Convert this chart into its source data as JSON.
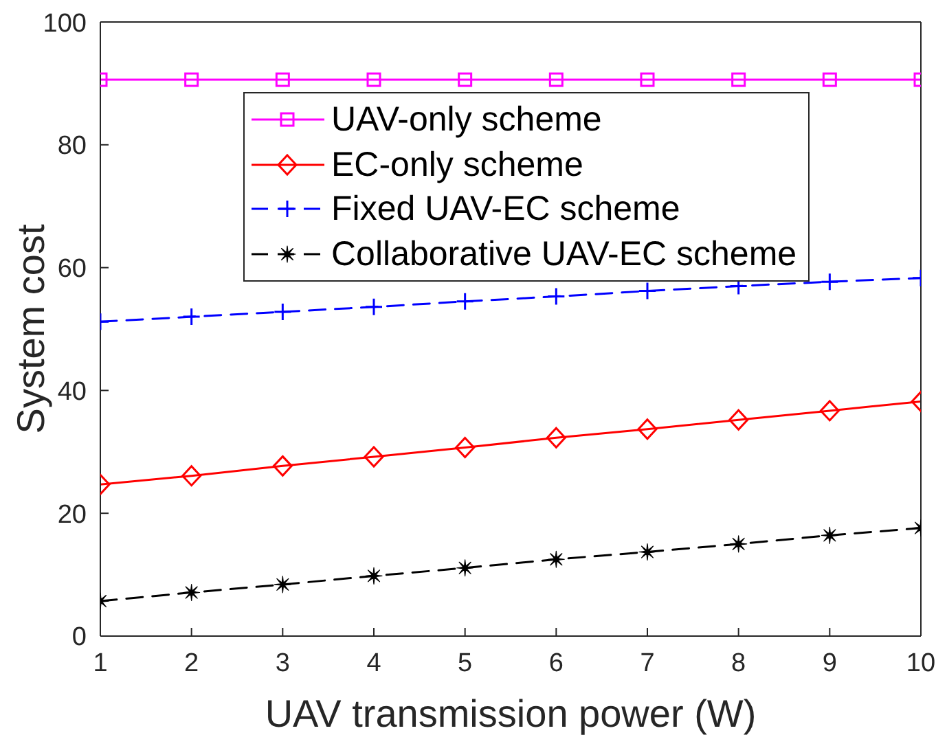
{
  "chart_data": {
    "type": "line",
    "xlabel": "UAV transmission power (W)",
    "ylabel": "System cost",
    "x": [
      1,
      2,
      3,
      4,
      5,
      6,
      7,
      8,
      9,
      10
    ],
    "xlim": [
      1,
      10
    ],
    "xticks": [
      1,
      2,
      3,
      4,
      5,
      6,
      7,
      8,
      9,
      10
    ],
    "ylim": [
      0,
      100
    ],
    "yticks": [
      0,
      20,
      40,
      60,
      80,
      100
    ],
    "legend": "top",
    "series": [
      {
        "name": "UAV-only scheme",
        "color": "#ff00ff",
        "marker": "square",
        "line_style": "solid",
        "values": [
          90.6,
          90.6,
          90.6,
          90.6,
          90.6,
          90.6,
          90.6,
          90.6,
          90.6,
          90.6
        ]
      },
      {
        "name": "EC-only scheme",
        "color": "#ff0000",
        "marker": "diamond",
        "line_style": "solid",
        "values": [
          24.7,
          26.1,
          27.7,
          29.2,
          30.7,
          32.3,
          33.7,
          35.2,
          36.7,
          38.2
        ]
      },
      {
        "name": "Fixed UAV-EC scheme",
        "color": "#0000ff",
        "marker": "cross",
        "line_style": "dashed",
        "values": [
          51.2,
          52.0,
          52.8,
          53.6,
          54.5,
          55.3,
          56.2,
          57.0,
          57.7,
          58.3
        ]
      },
      {
        "name": "Collaborative UAV-EC scheme",
        "color": "#000000",
        "marker": "star",
        "line_style": "dashed",
        "values": [
          5.7,
          7.1,
          8.4,
          9.8,
          11.1,
          12.5,
          13.7,
          15.0,
          16.4,
          17.6
        ]
      }
    ]
  }
}
